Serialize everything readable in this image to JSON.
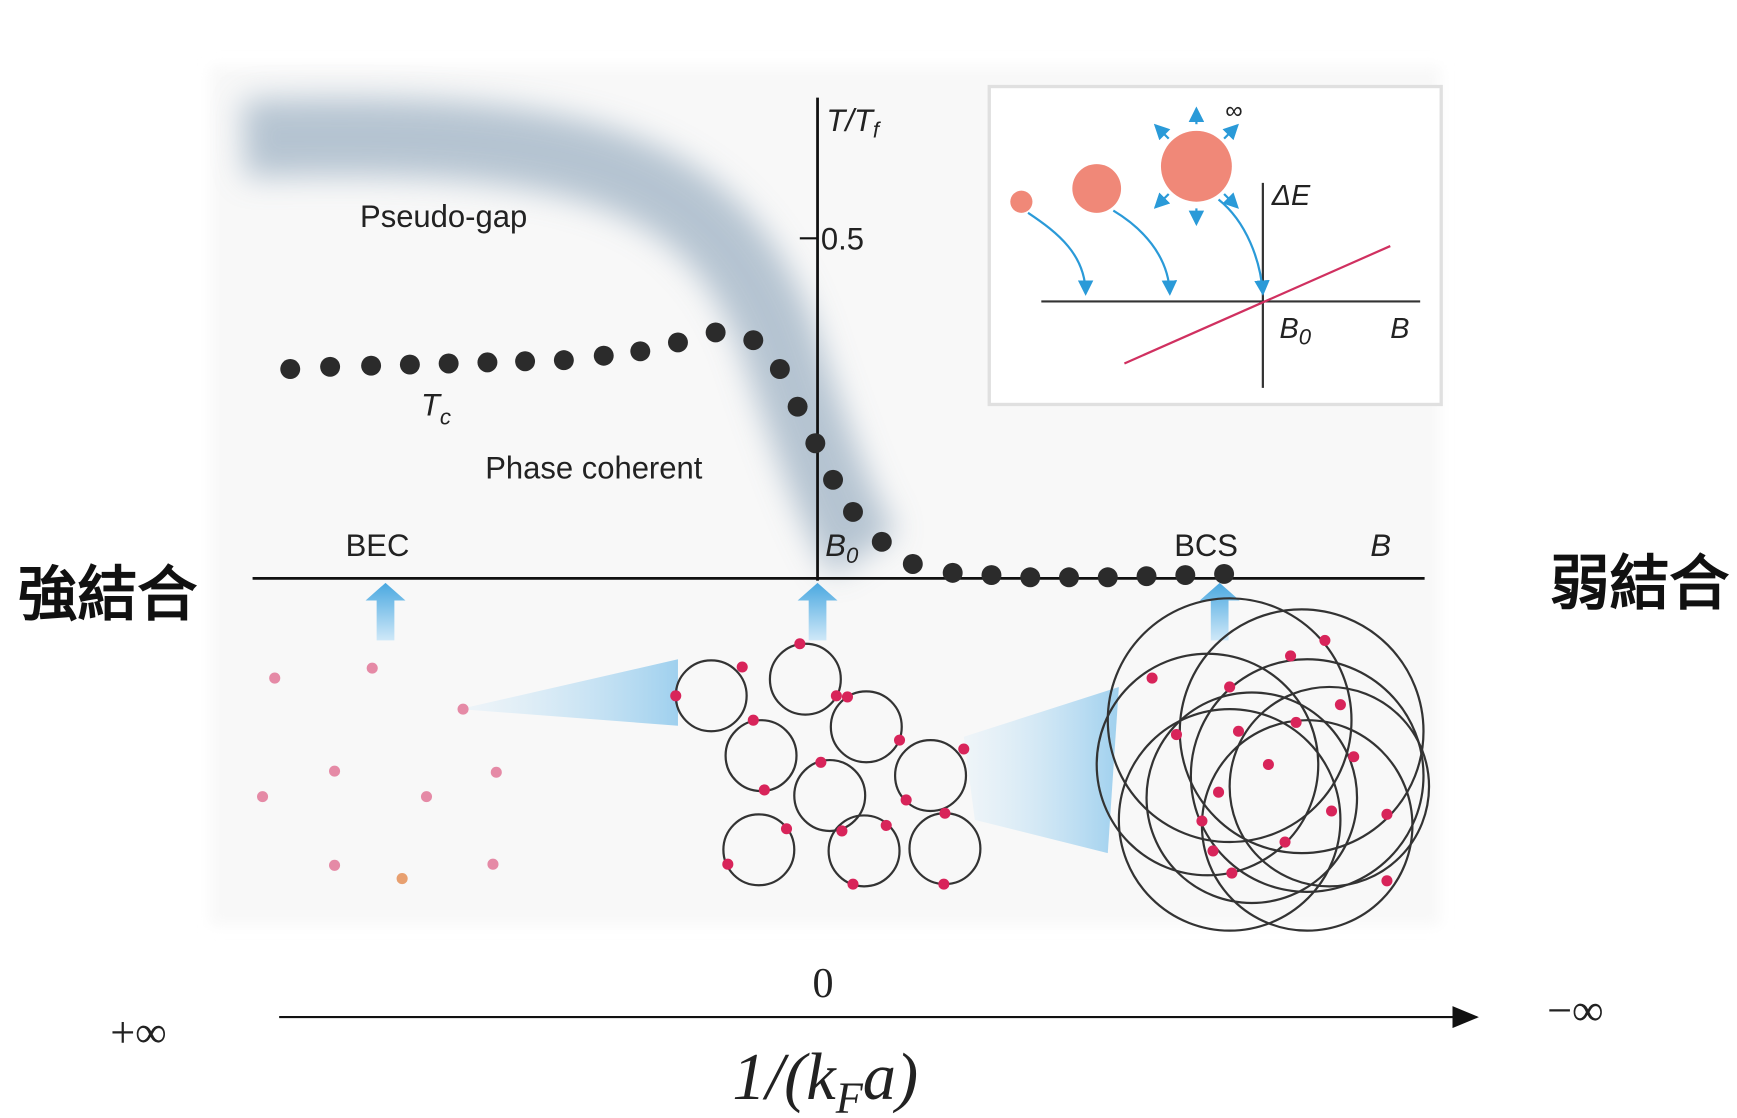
{
  "diagram": {
    "left_label": "強結合",
    "right_label": "弱結合",
    "main": {
      "pseudo_gap": "Pseudo-gap",
      "y_axis_label": {
        "main": "T/T",
        "sub": "f"
      },
      "y_tick": "0.5",
      "tc_label": {
        "main": "T",
        "sub": "c"
      },
      "phase_coherent": "Phase coherent",
      "bec": "BEC",
      "b0": {
        "main": "B",
        "sub": "0"
      },
      "bcs": "BCS",
      "b": "B"
    },
    "inset": {
      "infinity": "∞",
      "delta_e": "ΔE",
      "b0": {
        "main": "B",
        "sub": "0"
      },
      "b": "B"
    },
    "bottom_axis": {
      "zero": "0",
      "left_end": "+∞",
      "right_end": "−∞",
      "label": {
        "head": "1/(k",
        "sub": "F",
        "tail": "a)"
      }
    }
  }
}
